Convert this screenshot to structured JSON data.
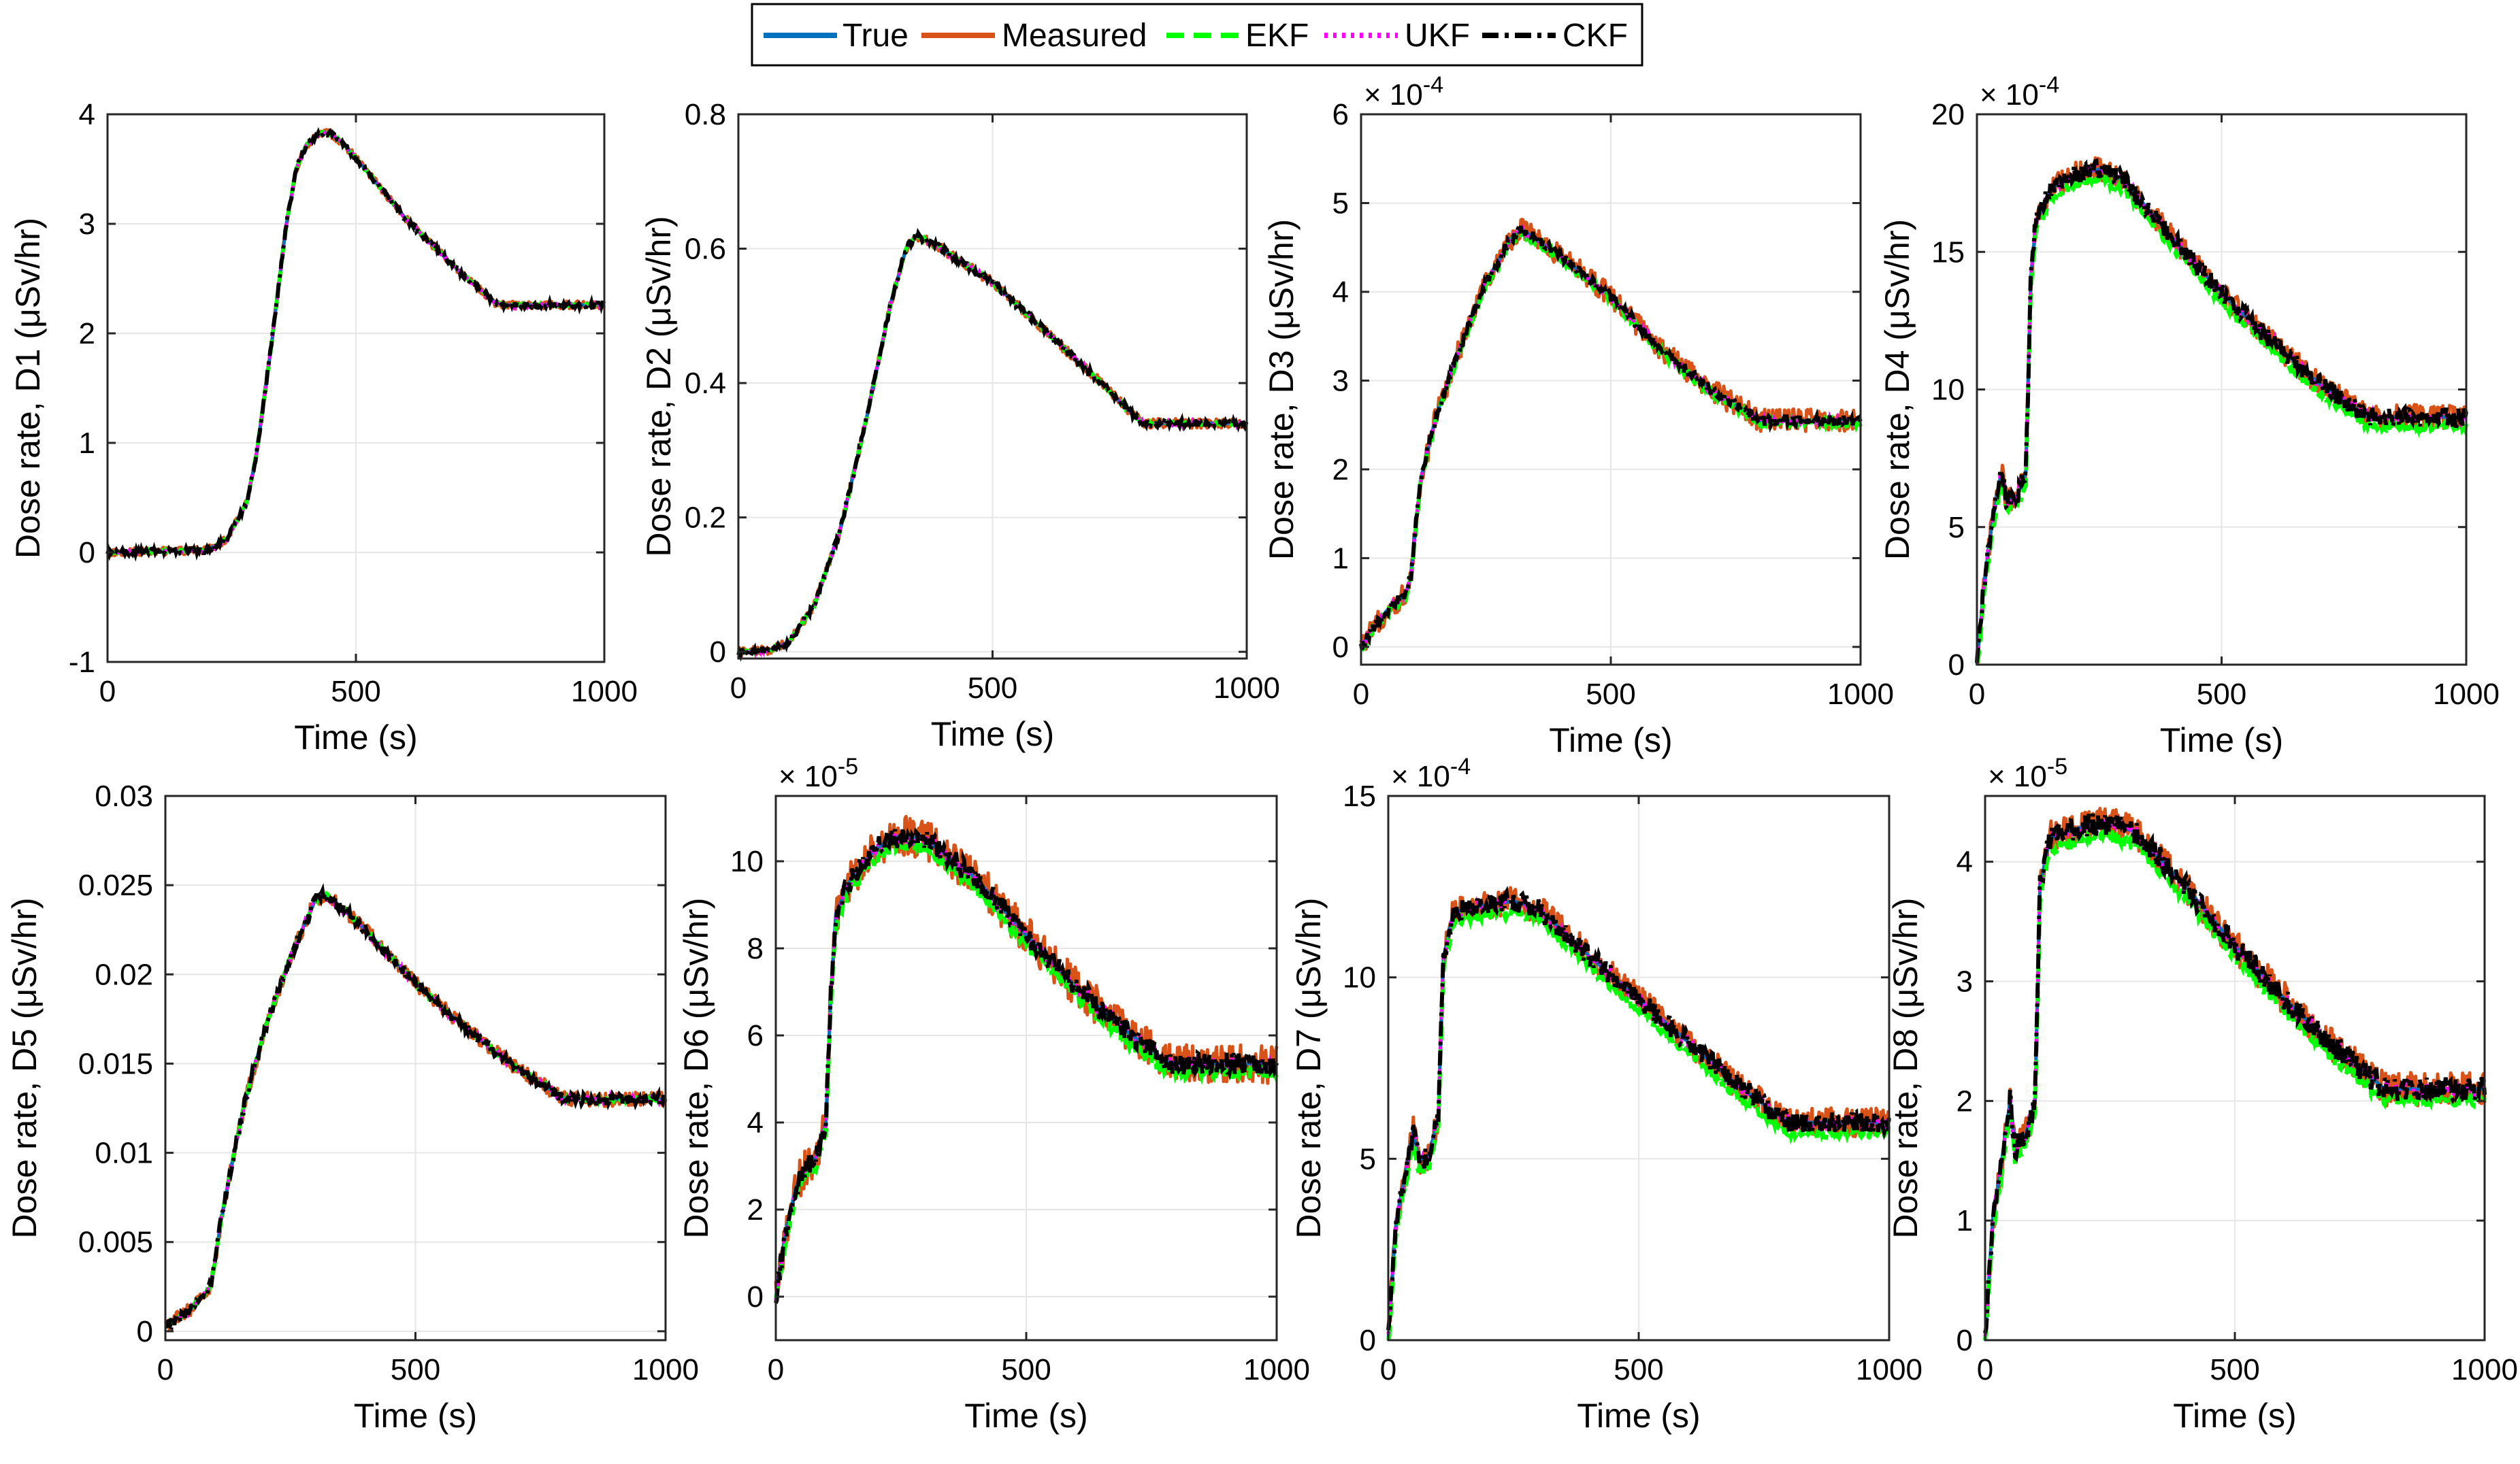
{
  "legend": {
    "entries": [
      {
        "name": "True",
        "color": "#0072BD",
        "style": "solid"
      },
      {
        "name": "Measured",
        "color": "#D95319",
        "style": "solid"
      },
      {
        "name": "EKF",
        "color": "#00FF00",
        "style": "dashed"
      },
      {
        "name": "UKF",
        "color": "#FF00FF",
        "style": "dotted"
      },
      {
        "name": "CKF",
        "color": "#000000",
        "style": "dashdot"
      }
    ]
  },
  "chart_data": [
    {
      "type": "line",
      "title": "",
      "xlabel": "Time (s)",
      "ylabel": "Dose rate, D1 (μSv/hr)",
      "xlim": [
        0,
        1000
      ],
      "ylim": [
        -1,
        4
      ],
      "xticks": [
        "0",
        "500",
        "1000"
      ],
      "yticks": [
        "-1",
        "0",
        "1",
        "2",
        "3",
        "4"
      ],
      "exponent": null,
      "noise_meas": 0.035,
      "noise_ckf": 0.025,
      "noise_ekf": 0.01,
      "ekf_bias": 0,
      "series_points": {
        "x": [
          0,
          200,
          240,
          280,
          300,
          330,
          360,
          380,
          400,
          430,
          450,
          470,
          500,
          600,
          700,
          780,
          800,
          1000
        ],
        "y": [
          0,
          0.02,
          0.12,
          0.45,
          0.9,
          1.9,
          3.0,
          3.5,
          3.72,
          3.83,
          3.82,
          3.75,
          3.6,
          3.05,
          2.6,
          2.28,
          2.26,
          2.26
        ]
      }
    },
    {
      "type": "line",
      "title": "",
      "xlabel": "Time (s)",
      "ylabel": "Dose rate, D2 (μSv/hr)",
      "xlim": [
        0,
        1000
      ],
      "ylim": [
        -0.01,
        0.8
      ],
      "xticks": [
        "0",
        "500",
        "1000"
      ],
      "yticks": [
        "0",
        "0.2",
        "0.4",
        "0.6",
        "0.8"
      ],
      "exponent": null,
      "noise_meas": 0.007,
      "noise_ckf": 0.005,
      "noise_ekf": 0.002,
      "ekf_bias": 0,
      "series_points": {
        "x": [
          0,
          60,
          100,
          150,
          200,
          250,
          300,
          330,
          350,
          400,
          500,
          600,
          700,
          780,
          800,
          1000
        ],
        "y": [
          0,
          0.002,
          0.015,
          0.07,
          0.18,
          0.34,
          0.52,
          0.6,
          0.62,
          0.6,
          0.55,
          0.48,
          0.41,
          0.35,
          0.34,
          0.34
        ]
      }
    },
    {
      "type": "line",
      "title": "",
      "xlabel": "Time (s)",
      "ylabel": "Dose rate, D3 (μSv/hr)",
      "xlim": [
        0,
        1000
      ],
      "ylim": [
        -0.2,
        6
      ],
      "xticks": [
        "0",
        "500",
        "1000"
      ],
      "yticks": [
        "0",
        "1",
        "2",
        "3",
        "4",
        "5",
        "6"
      ],
      "exponent": "-4",
      "noise_meas": 0.13,
      "noise_ckf": 0.06,
      "noise_ekf": 0.04,
      "ekf_bias": -0.03,
      "series_points": {
        "x": [
          0,
          50,
          90,
          100,
          110,
          120,
          150,
          200,
          250,
          300,
          320,
          350,
          400,
          500,
          600,
          700,
          800,
          1000
        ],
        "y": [
          0,
          0.4,
          0.6,
          0.8,
          1.4,
          1.9,
          2.6,
          3.4,
          4.1,
          4.6,
          4.7,
          4.6,
          4.4,
          3.95,
          3.35,
          2.9,
          2.55,
          2.55
        ]
      }
    },
    {
      "type": "line",
      "title": "",
      "xlabel": "Time (s)",
      "ylabel": "Dose rate, D4 (μSv/hr)",
      "xlim": [
        0,
        1000
      ],
      "ylim": [
        0,
        20
      ],
      "xticks": [
        "0",
        "500",
        "1000"
      ],
      "yticks": [
        "0",
        "5",
        "10",
        "15",
        "20"
      ],
      "exponent": "-4",
      "noise_meas": 0.45,
      "noise_ckf": 0.35,
      "noise_ekf": 0.15,
      "ekf_bias": -0.35,
      "series_points": {
        "x": [
          0,
          15,
          30,
          40,
          50,
          60,
          80,
          100,
          110,
          120,
          150,
          200,
          250,
          300,
          400,
          500,
          600,
          700,
          800,
          1000
        ],
        "y": [
          0,
          3,
          5,
          6,
          7,
          6,
          6,
          7,
          14,
          16,
          17.3,
          17.8,
          18,
          17.6,
          15.5,
          13.5,
          11.8,
          10.2,
          9.0,
          9.0
        ]
      }
    },
    {
      "type": "line",
      "title": "",
      "xlabel": "Time (s)",
      "ylabel": "Dose rate, D5 (μSv/hr)",
      "xlim": [
        0,
        1000
      ],
      "ylim": [
        -0.0005,
        0.03
      ],
      "xticks": [
        "0",
        "500",
        "1000"
      ],
      "yticks": [
        "0",
        "0.005",
        "0.01",
        "0.015",
        "0.02",
        "0.025",
        "0.03"
      ],
      "exponent": null,
      "noise_meas": 0.0004,
      "noise_ckf": 0.0003,
      "noise_ekf": 0.0001,
      "ekf_bias": 0,
      "series_points": {
        "x": [
          0,
          50,
          90,
          100,
          110,
          130,
          160,
          200,
          250,
          300,
          320,
          350,
          400,
          500,
          600,
          700,
          800,
          1000
        ],
        "y": [
          0.0003,
          0.0012,
          0.0025,
          0.004,
          0.006,
          0.009,
          0.013,
          0.017,
          0.021,
          0.0242,
          0.0245,
          0.0238,
          0.0225,
          0.0195,
          0.017,
          0.0148,
          0.013,
          0.013
        ]
      }
    },
    {
      "type": "line",
      "title": "",
      "xlabel": "Time (s)",
      "ylabel": "Dose rate, D6 (μSv/hr)",
      "xlim": [
        0,
        1000
      ],
      "ylim": [
        -1,
        11.5
      ],
      "xticks": [
        "0",
        "500",
        "1000"
      ],
      "yticks": [
        "0",
        "2",
        "4",
        "6",
        "8",
        "10"
      ],
      "exponent": "-5",
      "noise_meas": 0.45,
      "noise_ckf": 0.25,
      "noise_ekf": 0.15,
      "ekf_bias": -0.2,
      "series_points": {
        "x": [
          0,
          20,
          40,
          60,
          80,
          100,
          110,
          120,
          150,
          200,
          250,
          300,
          400,
          500,
          600,
          700,
          780,
          800,
          1000
        ],
        "y": [
          0,
          1.5,
          2.5,
          3.0,
          3.2,
          4.0,
          7.0,
          8.8,
          9.6,
          10.3,
          10.6,
          10.5,
          9.6,
          8.3,
          7.1,
          6.1,
          5.4,
          5.35,
          5.35
        ]
      }
    },
    {
      "type": "line",
      "title": "",
      "xlabel": "Time (s)",
      "ylabel": "Dose rate, D7 (μSv/hr)",
      "xlim": [
        0,
        1000
      ],
      "ylim": [
        0,
        15
      ],
      "xticks": [
        "0",
        "500",
        "1000"
      ],
      "yticks": [
        "0",
        "5",
        "10",
        "15"
      ],
      "exponent": "-4",
      "noise_meas": 0.4,
      "noise_ckf": 0.28,
      "noise_ekf": 0.12,
      "ekf_bias": -0.3,
      "series_points": {
        "x": [
          0,
          15,
          30,
          40,
          50,
          60,
          80,
          100,
          110,
          130,
          200,
          250,
          300,
          400,
          500,
          600,
          700,
          800,
          1000
        ],
        "y": [
          0,
          3.2,
          4.3,
          5,
          5.8,
          5,
          5,
          6.2,
          10.5,
          11.8,
          12.0,
          12.1,
          11.9,
          10.6,
          9.4,
          8.2,
          7.0,
          6.0,
          6.0
        ]
      }
    },
    {
      "type": "line",
      "title": "",
      "xlabel": "Time (s)",
      "ylabel": "Dose rate, D8 (μSv/hr)",
      "xlim": [
        0,
        1000
      ],
      "ylim": [
        0,
        4.55
      ],
      "xticks": [
        "0",
        "500",
        "1000"
      ],
      "yticks": [
        "0",
        "1",
        "2",
        "3",
        "4"
      ],
      "exponent": "-5",
      "noise_meas": 0.14,
      "noise_ckf": 0.1,
      "noise_ekf": 0.05,
      "ekf_bias": -0.1,
      "series_points": {
        "x": [
          0,
          15,
          30,
          40,
          50,
          60,
          80,
          100,
          110,
          130,
          200,
          250,
          300,
          400,
          500,
          600,
          700,
          800,
          1000
        ],
        "y": [
          0,
          1.0,
          1.4,
          1.7,
          2.0,
          1.6,
          1.7,
          2.0,
          3.8,
          4.2,
          4.3,
          4.32,
          4.25,
          3.8,
          3.3,
          2.85,
          2.45,
          2.1,
          2.1
        ]
      }
    }
  ]
}
